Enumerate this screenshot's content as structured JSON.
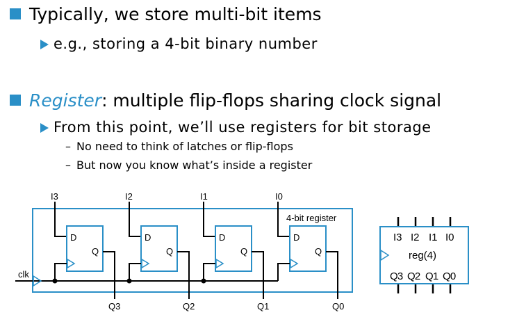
{
  "bullets": [
    {
      "text": "Typically, we store multi-bit items",
      "sub": [
        {
          "text": "e.g., storing a 4-bit binary number",
          "sub": []
        }
      ]
    },
    {
      "em": "Register",
      "text": ": multiple flip-flops sharing clock signal",
      "sub": [
        {
          "text": "From this point, we’ll use registers for bit storage",
          "sub": [
            "No need to think of latches or flip-flops",
            "But now you know what’s inside a register"
          ]
        }
      ]
    }
  ],
  "sub_marker": "–",
  "diagram": {
    "register_label": "4-bit register",
    "clock_label": "clk",
    "inputs": [
      "I3",
      "I2",
      "I1",
      "I0"
    ],
    "outputs": [
      "Q3",
      "Q2",
      "Q1",
      "Q0"
    ],
    "ff_d": "D",
    "ff_q": "Q",
    "symbol": {
      "inputs": [
        "I3",
        "I2",
        "I1",
        "I0"
      ],
      "name": "reg(4)",
      "outputs": [
        "Q3",
        "Q2",
        "Q1",
        "Q0"
      ]
    }
  }
}
